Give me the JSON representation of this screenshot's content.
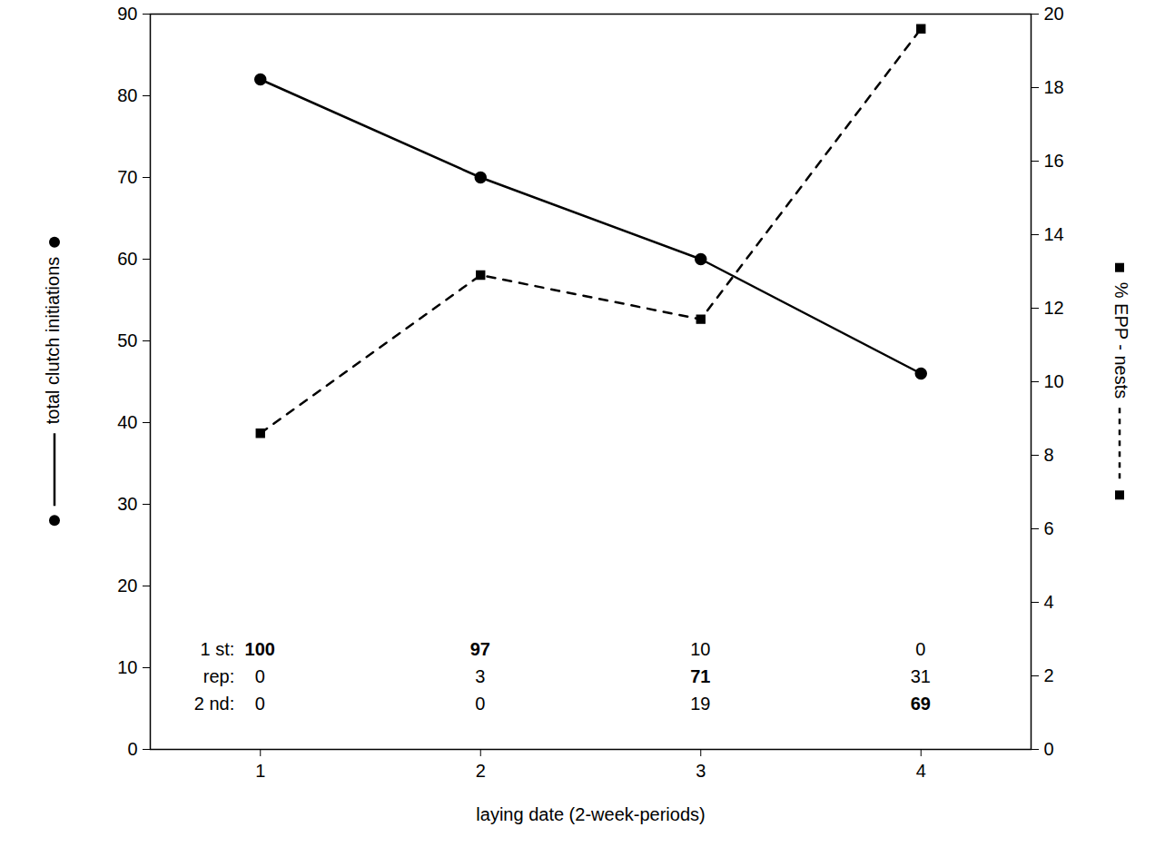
{
  "chart_data": {
    "type": "line",
    "x": [
      1,
      2,
      3,
      4
    ],
    "xlim": [
      0.5,
      4.5
    ],
    "xticks": [
      1,
      2,
      3,
      4
    ],
    "x_label": "laying date (2-week-periods)",
    "ylim": [
      0,
      90
    ],
    "yticks": [
      0,
      10,
      20,
      30,
      40,
      50,
      60,
      70,
      80,
      90
    ],
    "y2lim": [
      0,
      20
    ],
    "y2ticks": [
      0,
      2,
      4,
      6,
      8,
      10,
      12,
      14,
      16,
      18,
      20
    ],
    "series": [
      {
        "name": "total clutch initiations",
        "color": "#000000",
        "marker": "circle",
        "line_style": "solid",
        "values": [
          82,
          70,
          60,
          46
        ]
      },
      {
        "name": "% EPP - nests",
        "axis": "y2",
        "color": "#000000",
        "marker": "square",
        "line_style": "dashed",
        "values": [
          8.6,
          12.9,
          11.7,
          19.6
        ]
      }
    ],
    "table": {
      "rows": [
        {
          "label": "1 st:",
          "values": [
            100,
            97,
            10,
            0
          ]
        },
        {
          "label": "rep:",
          "values": [
            0,
            3,
            71,
            31
          ]
        },
        {
          "label": "2 nd:",
          "values": [
            0,
            0,
            19,
            69
          ]
        }
      ]
    }
  }
}
